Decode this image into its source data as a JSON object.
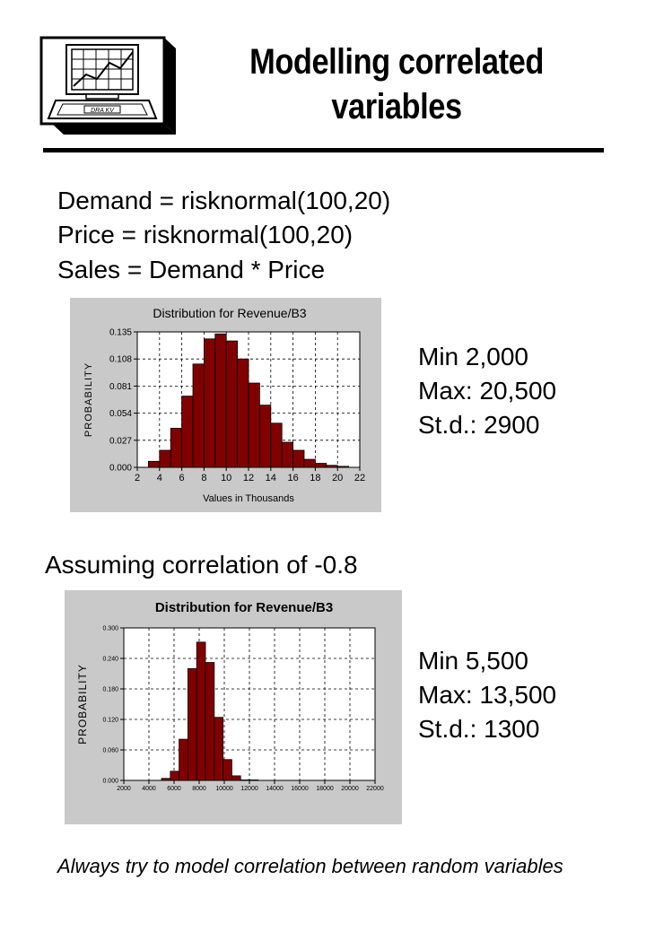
{
  "title": {
    "line1": "Modelling correlated",
    "line2": "variables"
  },
  "logo": {
    "screen_label": "DRA KV"
  },
  "formulas": [
    "Demand = risknormal(100,20)",
    "Price = risknormal(100,20)",
    "Sales = Demand * Price"
  ],
  "stats1": {
    "min": "Min 2,000",
    "max": "Max: 20,500",
    "sd": "St.d.: 2900"
  },
  "section2_label": "Assuming correlation of -0.8",
  "stats2": {
    "min": "Min 5,500",
    "max": "Max: 13,500",
    "sd": "St.d.: 1300"
  },
  "footnote": "Always try to model correlation between random variables",
  "chart_data": [
    {
      "type": "bar",
      "title": "Distribution for Revenue/B3",
      "xlabel": "Values in Thousands",
      "ylabel": "PROBABILITY",
      "xlim": [
        2,
        22
      ],
      "ylim": [
        0,
        0.135
      ],
      "x_ticks": [
        2,
        4,
        6,
        8,
        10,
        12,
        14,
        16,
        18,
        20,
        22
      ],
      "x_tick_labels": [
        "2",
        "4",
        "6",
        "8",
        "10",
        "12",
        "14",
        "16",
        "18",
        "20",
        "22"
      ],
      "y_ticks": [
        0,
        0.027,
        0.054,
        0.081,
        0.108,
        0.135
      ],
      "y_tick_labels": [
        "0.000",
        "0.027",
        "0.054",
        "0.081",
        "0.108",
        "0.135"
      ],
      "bin_width": 1,
      "bin_starts": [
        3,
        4,
        5,
        6,
        7,
        8,
        9,
        10,
        11,
        12,
        13,
        14,
        15,
        16,
        17,
        18,
        19,
        20
      ],
      "values": [
        0.006,
        0.017,
        0.039,
        0.071,
        0.103,
        0.128,
        0.133,
        0.126,
        0.108,
        0.084,
        0.062,
        0.044,
        0.025,
        0.017,
        0.008,
        0.004,
        0.002,
        0.001
      ],
      "bar_color": "#800000",
      "grid": true
    },
    {
      "type": "bar",
      "title": "Distribution for Revenue/B3",
      "xlabel": "",
      "ylabel": "PROBABILITY",
      "xlim": [
        2000,
        22000
      ],
      "ylim": [
        0,
        0.3
      ],
      "x_ticks": [
        2000,
        4000,
        6000,
        8000,
        10000,
        12000,
        14000,
        16000,
        18000,
        20000,
        22000
      ],
      "x_tick_labels": [
        "2000",
        "4000",
        "6000",
        "8000",
        "10000",
        "12000",
        "14000",
        "16000",
        "18000",
        "20000",
        "22000"
      ],
      "y_ticks": [
        0,
        0.06,
        0.12,
        0.18,
        0.24,
        0.3
      ],
      "y_tick_labels": [
        "0.000",
        "0.060",
        "0.120",
        "0.180",
        "0.240",
        "0.300"
      ],
      "bin_width": 700,
      "bin_starts": [
        5000,
        5700,
        6400,
        7100,
        7800,
        8500,
        9200,
        9900,
        10600,
        11300,
        12000
      ],
      "values": [
        0.004,
        0.018,
        0.081,
        0.22,
        0.272,
        0.232,
        0.124,
        0.041,
        0.009,
        0.001,
        0.001
      ],
      "bar_color": "#800000",
      "grid": true
    }
  ]
}
